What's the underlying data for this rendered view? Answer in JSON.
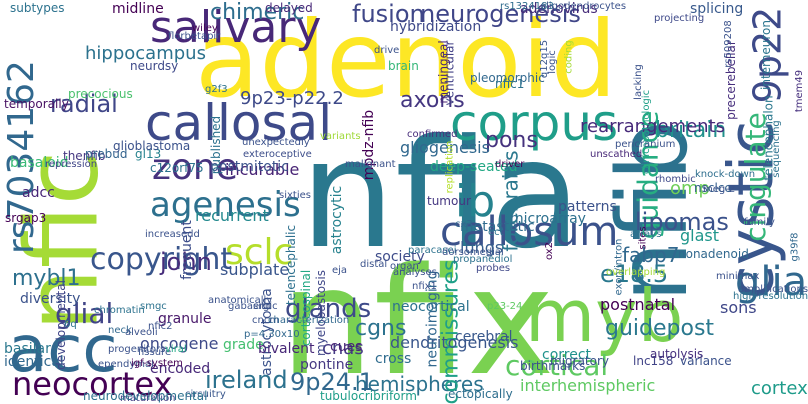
{
  "words": [
    {
      "text": "nfia",
      "color": "#2a788e"
    },
    {
      "text": "nfix",
      "color": "#7ad151"
    },
    {
      "text": "adenoid",
      "color": "#fde725"
    },
    {
      "text": "nfic",
      "color": "#a5db36"
    },
    {
      "text": "nfib",
      "color": "#2c728e"
    },
    {
      "text": "callosal",
      "color": "#3e4a89"
    },
    {
      "text": "acc",
      "color": "#31688e"
    },
    {
      "text": "myb",
      "color": "#7ad151"
    },
    {
      "text": "cystic",
      "color": "#39568c"
    },
    {
      "text": "salivary",
      "color": "#482878"
    },
    {
      "text": "corpus",
      "color": "#1f9e89"
    },
    {
      "text": "callosum",
      "color": "#3b528b"
    },
    {
      "text": "rs7034162",
      "color": "#31688e"
    },
    {
      "text": "neocortex",
      "color": "#440154"
    },
    {
      "text": "9p22",
      "color": "#3e4a89"
    },
    {
      "text": "zone",
      "color": "#46327e"
    },
    {
      "text": "agenesis",
      "color": "#2d708e"
    },
    {
      "text": "ib",
      "color": "#26828e"
    },
    {
      "text": "glia",
      "color": "#31688e"
    },
    {
      "text": "sclc",
      "color": "#b5de2b"
    },
    {
      "text": "copyright",
      "color": "#39568c"
    },
    {
      "text": "guidance",
      "color": "#26ad81"
    },
    {
      "text": "cingulate",
      "color": "#35b779"
    },
    {
      "text": "fusion",
      "color": "#3f4788"
    },
    {
      "text": "neurogenesis",
      "color": "#404688"
    },
    {
      "text": "chimeric",
      "color": "#2e6e8e"
    },
    {
      "text": "axons",
      "color": "#453781"
    },
    {
      "text": "britain",
      "color": "#21918c"
    },
    {
      "text": "lipomas",
      "color": "#3b528b"
    },
    {
      "text": "hemispheres",
      "color": "#2c728e"
    },
    {
      "text": "cortical",
      "color": "#5ec962"
    },
    {
      "text": "glands",
      "color": "#3e4a89"
    },
    {
      "text": "pons",
      "color": "#46337e"
    },
    {
      "text": "radial",
      "color": "#404688"
    },
    {
      "text": "john",
      "color": "#472d7b"
    },
    {
      "text": "commissures",
      "color": "#1fa088"
    },
    {
      "text": "forebrains",
      "color": "#2a788e"
    },
    {
      "text": "glial",
      "color": "#414487"
    },
    {
      "text": "mybl1",
      "color": "#2d708e"
    },
    {
      "text": "ireland",
      "color": "#2c728e"
    },
    {
      "text": "9p24.1",
      "color": "#31688e"
    },
    {
      "text": "cgns",
      "color": "#2c728e"
    },
    {
      "text": "fabp7",
      "color": "#31688e"
    },
    {
      "text": "e18.5",
      "color": "#2a788e"
    },
    {
      "text": "guidepost",
      "color": "#2a788e"
    },
    {
      "text": "9p23-p22.2",
      "color": "#3e4a89"
    },
    {
      "text": "rearrangements",
      "color": "#472a7a"
    },
    {
      "text": "omp",
      "color": "#6ece58"
    },
    {
      "text": "hippocampus",
      "color": "#2c728e"
    },
    {
      "text": "interhemispheric",
      "color": "#5ec962"
    },
    {
      "text": "incurable",
      "color": "#482475"
    },
    {
      "text": "recurrent",
      "color": "#23898e"
    },
    {
      "text": "postnatal",
      "color": "#440154"
    },
    {
      "text": "gliogenesis",
      "color": "#31688e"
    },
    {
      "text": "cortex",
      "color": "#1e9b8a"
    },
    {
      "text": "subplate",
      "color": "#39568c"
    },
    {
      "text": "dendritogenesis",
      "color": "#39568c"
    },
    {
      "text": "astrocytoma",
      "color": "#3b528b"
    },
    {
      "text": "glast",
      "color": "#1f968b"
    },
    {
      "text": "lungs",
      "color": "#365d8d"
    },
    {
      "text": "cnas",
      "color": "#443a83"
    },
    {
      "text": "sons",
      "color": "#3f4788"
    },
    {
      "text": "neocortical",
      "color": "#2c728e"
    },
    {
      "text": "cerebral",
      "color": "#38588c"
    },
    {
      "text": "postmitotic",
      "color": "#3b528b"
    },
    {
      "text": "metastatic",
      "color": "#2f6b8e"
    },
    {
      "text": "mpdz-nfib",
      "color": "#440154"
    },
    {
      "text": "deep-seated",
      "color": "#22a884"
    },
    {
      "text": "midline",
      "color": "#440154"
    },
    {
      "text": "basaloid",
      "color": "#3aba76"
    },
    {
      "text": "adenovirus",
      "color": "#472c7a"
    },
    {
      "text": "splicing",
      "color": "#38598c"
    },
    {
      "text": "oncogene",
      "color": "#3e4a89"
    },
    {
      "text": "encoded",
      "color": "#482979"
    },
    {
      "text": "grade",
      "color": "#45bf70"
    },
    {
      "text": "granule",
      "color": "#48186a"
    },
    {
      "text": "bivalent",
      "color": "#482878"
    },
    {
      "text": "pontine",
      "color": "#453882"
    },
    {
      "text": "cross",
      "color": "#2f6c8e"
    },
    {
      "text": "frequent",
      "color": "#3d4d8a"
    },
    {
      "text": "astrocytic",
      "color": "#26828e"
    },
    {
      "text": "neuroimaging",
      "color": "#31688e"
    },
    {
      "text": "microarray",
      "color": "#2d708e"
    },
    {
      "text": "patterns",
      "color": "#3b528b"
    },
    {
      "text": "society",
      "color": "#3e4c8a"
    },
    {
      "text": "cues",
      "color": "#482475"
    },
    {
      "text": "correct",
      "color": "#20928c"
    },
    {
      "text": "hybridization",
      "color": "#3e4989"
    },
    {
      "text": "ventricular",
      "color": "#424186"
    },
    {
      "text": "interneuron",
      "color": "#2b758e"
    },
    {
      "text": "precerebellar",
      "color": "#472f7d"
    },
    {
      "text": "telencephalon",
      "color": "#2a788e"
    },
    {
      "text": "nonadenoid",
      "color": "#31688e"
    },
    {
      "text": "nsclcc",
      "color": "#355f8d"
    },
    {
      "text": "precocious",
      "color": "#4ac16d"
    },
    {
      "text": "temporally",
      "color": "#471063"
    },
    {
      "text": "diversity",
      "color": "#3b528b"
    },
    {
      "text": "basilar",
      "color": "#2a788e"
    },
    {
      "text": "identical",
      "color": "#31688e"
    },
    {
      "text": "adcc",
      "color": "#482677"
    },
    {
      "text": "srgap3",
      "color": "#440154"
    },
    {
      "text": "developmental",
      "color": "#404588"
    },
    {
      "text": "migratory",
      "color": "#3b528b"
    },
    {
      "text": "lnc158",
      "color": "#414487"
    },
    {
      "text": "ectopically",
      "color": "#2e6e8e"
    },
    {
      "text": "birthmarks",
      "color": "#3b528b"
    },
    {
      "text": "autolysis",
      "color": "#46307e"
    },
    {
      "text": "tubulocribriform",
      "color": "#1f9e89"
    },
    {
      "text": "circuitry",
      "color": "#39568c"
    },
    {
      "text": "maturation",
      "color": "#433e85"
    },
    {
      "text": "neurodevelopmental",
      "color": "#2c728e"
    },
    {
      "text": "variance",
      "color": "#3b528b"
    },
    {
      "text": "telencephalic",
      "color": "#2d708e"
    },
    {
      "text": "corticospinal",
      "color": "#22a884"
    },
    {
      "text": "myelobastosis",
      "color": "#3f4788"
    },
    {
      "text": "published",
      "color": "#2c728e"
    },
    {
      "text": "wiley",
      "color": "#440154"
    },
    {
      "text": "delayed",
      "color": "#482878"
    },
    {
      "text": "neurdsy",
      "color": "#3e4989"
    },
    {
      "text": "gl13",
      "color": "#26828e"
    },
    {
      "text": "c12orf75",
      "color": "#2c728e"
    },
    {
      "text": "thenfib",
      "color": "#453781"
    },
    {
      "text": "prebud",
      "color": "#33638d"
    },
    {
      "text": "glioblastoma",
      "color": "#3b528b"
    },
    {
      "text": "repression",
      "color": "#404688"
    },
    {
      "text": "exteroceptive",
      "color": "#3d4e8a"
    },
    {
      "text": "variants",
      "color": "#a0da39"
    },
    {
      "text": "drive",
      "color": "#3b528b"
    },
    {
      "text": "brain",
      "color": "#35b779"
    },
    {
      "text": "meningeal",
      "color": "#482576"
    },
    {
      "text": "pleomorphic",
      "color": "#31688e"
    },
    {
      "text": "nfic1",
      "color": "#2c728e"
    },
    {
      "text": "q12q15",
      "color": "#39568c"
    },
    {
      "text": "logic",
      "color": "#3b528b"
    },
    {
      "text": "coding",
      "color": "#a5db36"
    },
    {
      "text": "lacking",
      "color": "#3b528b"
    },
    {
      "text": "projecting",
      "color": "#3e4989"
    },
    {
      "text": "rs509208",
      "color": "#3b528b"
    },
    {
      "text": "tmem49",
      "color": "#46307e"
    },
    {
      "text": "clinicopathologic",
      "color": "#1fa088"
    },
    {
      "text": "sequencing",
      "color": "#2c728e"
    },
    {
      "text": "oligodendrocytes",
      "color": "#3b528b"
    },
    {
      "text": "subtypes",
      "color": "#2c728e"
    },
    {
      "text": "rs1324183",
      "color": "#2f6c8e"
    },
    {
      "text": "confirmed",
      "color": "#472c7a"
    },
    {
      "text": "malignant",
      "color": "#3b528b"
    },
    {
      "text": "unscathed",
      "color": "#482878"
    },
    {
      "text": "pericranium",
      "color": "#3b528b"
    },
    {
      "text": "replication",
      "color": "#b5de2b"
    },
    {
      "text": "tumour",
      "color": "#453781"
    },
    {
      "text": "driver",
      "color": "#440154"
    },
    {
      "text": "rhombic",
      "color": "#3e4989"
    },
    {
      "text": "knock-down",
      "color": "#2e6e8e"
    },
    {
      "text": "meg-2",
      "color": "#3b528b"
    },
    {
      "text": "cx3",
      "color": "#31688e"
    },
    {
      "text": "ect",
      "color": "#2c728e"
    },
    {
      "text": "paracasei",
      "color": "#2c728e"
    },
    {
      "text": "dorsomedial",
      "color": "#3b528b"
    },
    {
      "text": "analyses",
      "color": "#3b528b"
    },
    {
      "text": "probes",
      "color": "#3f4788"
    },
    {
      "text": "ox2",
      "color": "#440154"
    },
    {
      "text": "exon/intron",
      "color": "#31688e"
    },
    {
      "text": "overlapping",
      "color": "#a5db36"
    },
    {
      "text": "family",
      "color": "#3b528b"
    },
    {
      "text": "minimax",
      "color": "#3b528b"
    },
    {
      "text": "high-resolution",
      "color": "#2c728e"
    },
    {
      "text": "g39f8",
      "color": "#31688e"
    },
    {
      "text": "amplifications",
      "color": "#3b528b"
    },
    {
      "text": "sites",
      "color": "#440154"
    },
    {
      "text": "arrays",
      "color": "#2c728e"
    },
    {
      "text": "p23-24",
      "color": "#5ec962"
    },
    {
      "text": "propanediol",
      "color": "#2c728e"
    },
    {
      "text": "eja",
      "color": "#3b528b"
    },
    {
      "text": "distal",
      "color": "#3b528b"
    },
    {
      "text": "organ",
      "color": "#3b528b"
    },
    {
      "text": "nfix1",
      "color": "#3b528b"
    },
    {
      "text": "situ",
      "color": "#3b528b"
    },
    {
      "text": "cncm",
      "color": "#3b528b"
    },
    {
      "text": "characterization",
      "color": "#31688e"
    },
    {
      "text": "increasedd",
      "color": "#3b528b"
    },
    {
      "text": "anatomically",
      "color": "#3b528b"
    },
    {
      "text": "gabaergic",
      "color": "#3b528b"
    },
    {
      "text": "6q",
      "color": "#2c728e"
    },
    {
      "text": "neck",
      "color": "#31688e"
    },
    {
      "text": "alveoli",
      "color": "#3b528b"
    },
    {
      "text": "smgc",
      "color": "#2c728e"
    },
    {
      "text": "nfic2",
      "color": "#3b528b"
    },
    {
      "text": "fissure",
      "color": "#3b528b"
    },
    {
      "text": "viral",
      "color": "#22a884"
    },
    {
      "text": "progenitors",
      "color": "#3b528b"
    },
    {
      "text": "ependymal",
      "color": "#3b528b"
    },
    {
      "text": "p=4.30x10",
      "color": "#31688e"
    },
    {
      "text": "chromatin",
      "color": "#2c728e"
    },
    {
      "text": "igf-system",
      "color": "#440154"
    },
    {
      "text": "florbetapir",
      "color": "#3b528b"
    },
    {
      "text": "g2f3",
      "color": "#2c728e"
    },
    {
      "text": "unexpectedly",
      "color": "#3b528b"
    },
    {
      "text": "sixties",
      "color": "#3b528b"
    }
  ]
}
